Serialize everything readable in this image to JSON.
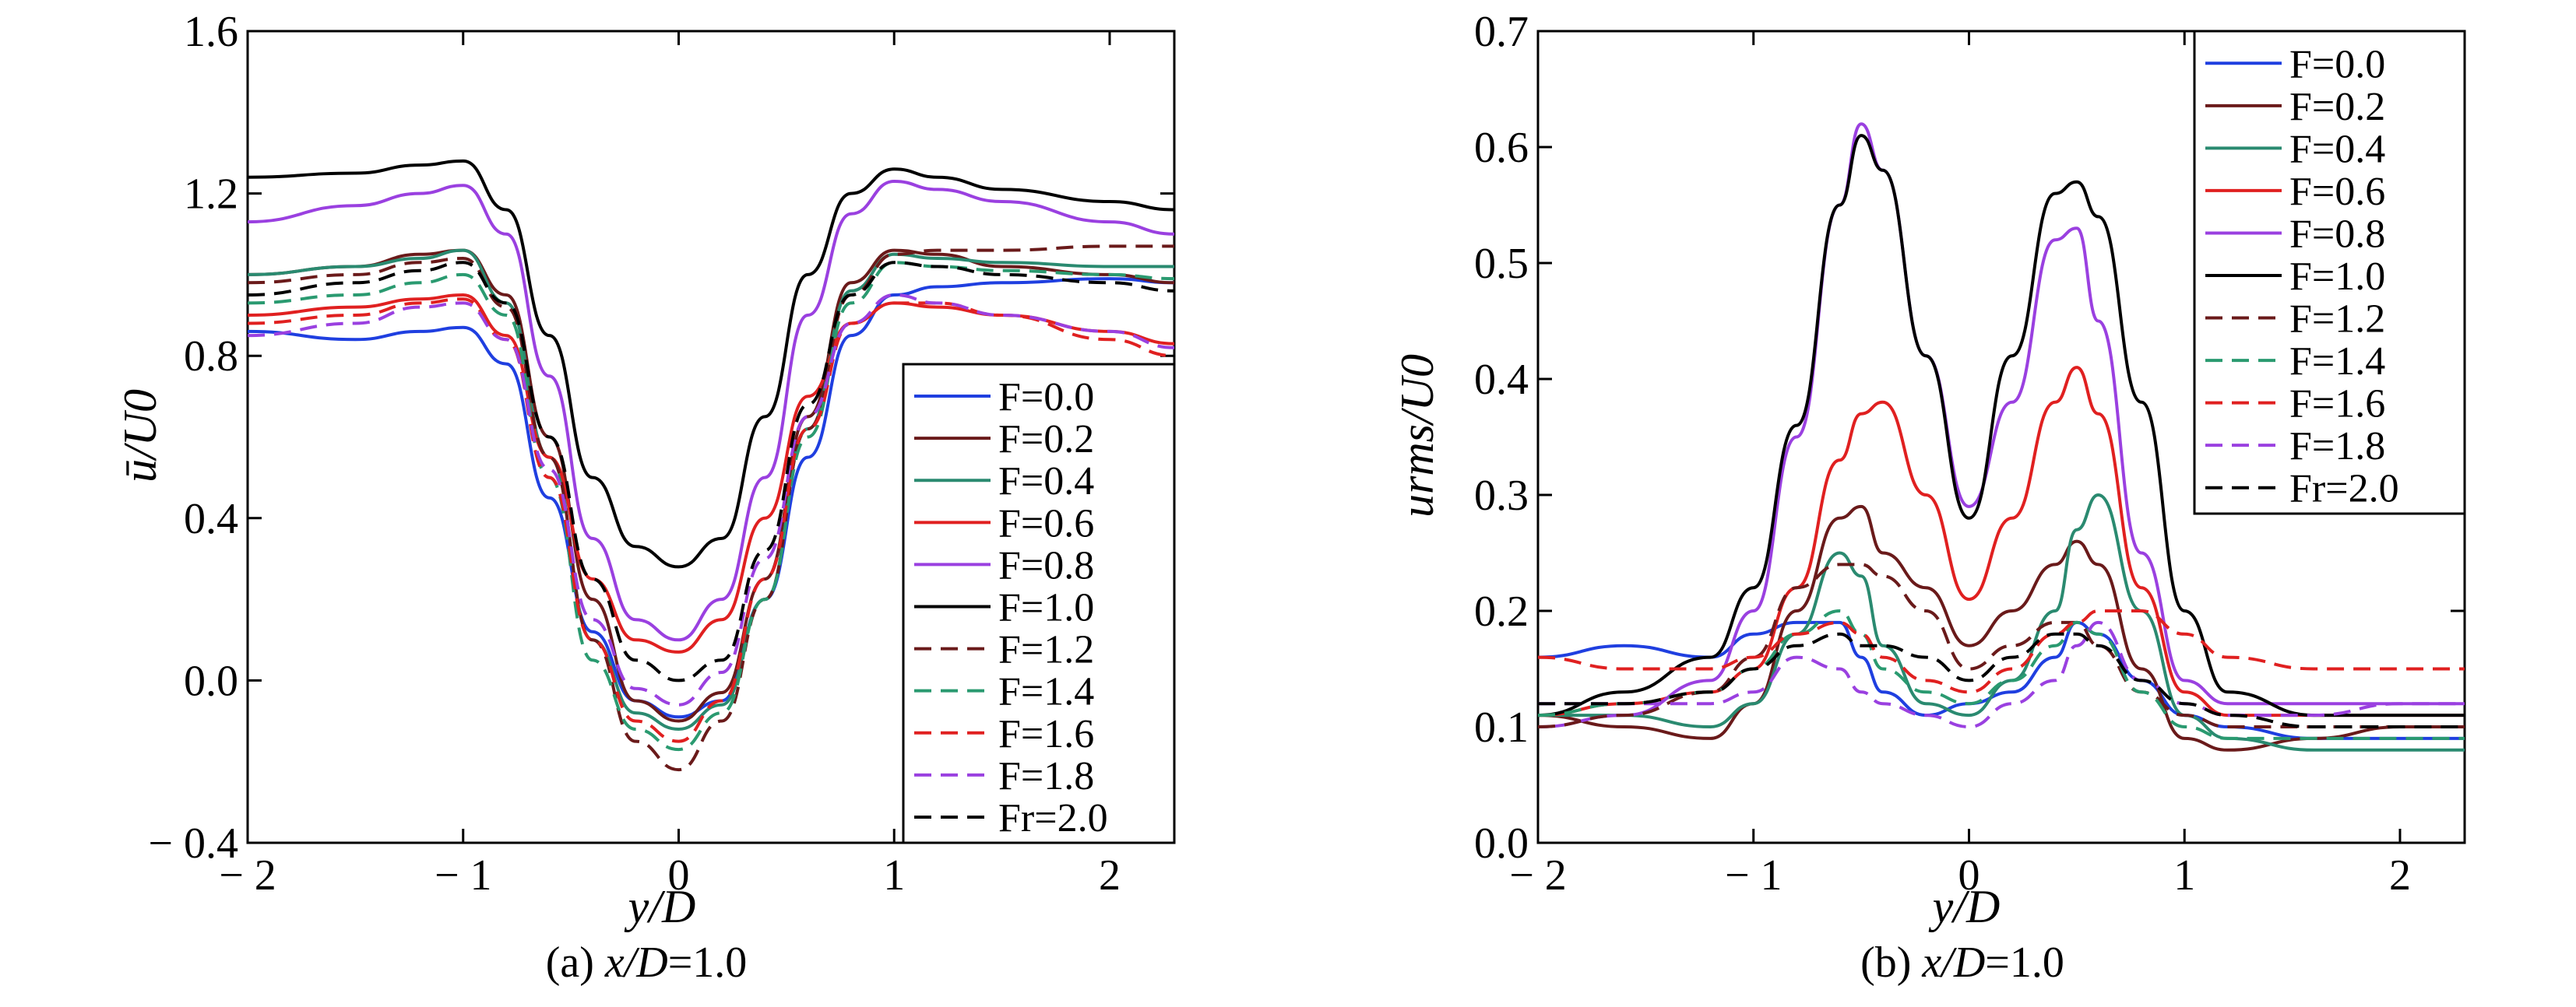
{
  "figure": {
    "caption_a_prefix": "(a) ",
    "caption_a_var": "x/D",
    "caption_a_value": "=1.0",
    "caption_b_prefix": "(b) ",
    "caption_b_var": "x/D",
    "caption_b_value": "=1.0"
  },
  "chart_data": [
    {
      "type": "line",
      "title": "",
      "xlabel": "y/D",
      "ylabel": "ū/U0",
      "xlim": [
        -2,
        2.3
      ],
      "ylim": [
        -0.4,
        1.6
      ],
      "xticks": [
        -2,
        -1,
        0,
        1,
        2
      ],
      "yticks": [
        -0.4,
        0.0,
        0.4,
        0.8,
        1.2,
        1.6
      ],
      "xtick_labels": [
        "− 2",
        "− 1",
        "0",
        "1",
        "2"
      ],
      "ytick_labels": [
        "− 0.4",
        "0.0",
        "0.4",
        "0.8",
        "1.2",
        "1.6"
      ],
      "legend_position": "bottom-right",
      "x": [
        -2.0,
        -1.5,
        -1.2,
        -1.0,
        -0.8,
        -0.6,
        -0.4,
        -0.2,
        0.0,
        0.2,
        0.4,
        0.6,
        0.8,
        1.0,
        1.2,
        1.5,
        2.0,
        2.3
      ],
      "series": [
        {
          "name": "F=0.0",
          "color": "#1f3fe0",
          "dash": "solid",
          "values": [
            0.86,
            0.84,
            0.86,
            0.87,
            0.78,
            0.45,
            0.12,
            -0.05,
            -0.09,
            -0.05,
            0.2,
            0.55,
            0.85,
            0.95,
            0.97,
            0.98,
            0.99,
            0.98
          ]
        },
        {
          "name": "F=0.2",
          "color": "#6a1a1a",
          "dash": "solid",
          "values": [
            1.0,
            1.02,
            1.05,
            1.06,
            0.95,
            0.6,
            0.2,
            -0.05,
            -0.1,
            -0.03,
            0.25,
            0.65,
            0.98,
            1.06,
            1.05,
            1.02,
            1.0,
            0.98
          ]
        },
        {
          "name": "F=0.4",
          "color": "#2a8a70",
          "dash": "solid",
          "values": [
            1.0,
            1.02,
            1.04,
            1.06,
            0.93,
            0.55,
            0.1,
            -0.08,
            -0.12,
            -0.06,
            0.2,
            0.62,
            0.96,
            1.05,
            1.04,
            1.03,
            1.02,
            1.02
          ]
        },
        {
          "name": "F=0.6",
          "color": "#e02020",
          "dash": "solid",
          "values": [
            0.9,
            0.92,
            0.94,
            0.95,
            0.85,
            0.55,
            0.25,
            0.1,
            0.07,
            0.15,
            0.4,
            0.7,
            0.88,
            0.93,
            0.92,
            0.9,
            0.86,
            0.83
          ]
        },
        {
          "name": "F=0.8",
          "color": "#9a40e0",
          "dash": "solid",
          "values": [
            1.13,
            1.17,
            1.2,
            1.22,
            1.1,
            0.75,
            0.35,
            0.15,
            0.1,
            0.2,
            0.5,
            0.9,
            1.15,
            1.23,
            1.21,
            1.18,
            1.13,
            1.1
          ]
        },
        {
          "name": "F=1.0",
          "color": "#000000",
          "dash": "solid",
          "values": [
            1.24,
            1.25,
            1.27,
            1.28,
            1.16,
            0.85,
            0.5,
            0.33,
            0.28,
            0.35,
            0.65,
            1.0,
            1.2,
            1.26,
            1.24,
            1.21,
            1.18,
            1.16
          ]
        },
        {
          "name": "F=1.2",
          "color": "#6a1a1a",
          "dash": "dashed",
          "values": [
            0.98,
            1.0,
            1.03,
            1.04,
            0.92,
            0.55,
            0.1,
            -0.15,
            -0.22,
            -0.1,
            0.2,
            0.62,
            0.95,
            1.05,
            1.06,
            1.06,
            1.07,
            1.07
          ]
        },
        {
          "name": "F=1.4",
          "color": "#2a9a70",
          "dash": "dashed",
          "values": [
            0.93,
            0.95,
            0.98,
            1.0,
            0.9,
            0.5,
            0.05,
            -0.12,
            -0.17,
            -0.08,
            0.2,
            0.6,
            0.93,
            1.03,
            1.02,
            1.01,
            1.0,
            0.99
          ]
        },
        {
          "name": "F=1.6",
          "color": "#e02020",
          "dash": "dashed",
          "values": [
            0.88,
            0.9,
            0.93,
            0.94,
            0.84,
            0.5,
            0.1,
            -0.1,
            -0.15,
            -0.05,
            0.25,
            0.62,
            0.88,
            0.93,
            0.93,
            0.9,
            0.84,
            0.8
          ]
        },
        {
          "name": "F=1.8",
          "color": "#9a40e0",
          "dash": "dashed",
          "values": [
            0.85,
            0.88,
            0.92,
            0.93,
            0.84,
            0.52,
            0.15,
            -0.02,
            -0.06,
            0.02,
            0.3,
            0.65,
            0.88,
            0.95,
            0.93,
            0.9,
            0.86,
            0.82
          ]
        },
        {
          "name": "Fr=2.0",
          "color": "#000000",
          "dash": "dashed",
          "values": [
            0.95,
            0.98,
            1.01,
            1.03,
            0.93,
            0.6,
            0.25,
            0.05,
            0.0,
            0.05,
            0.32,
            0.68,
            0.95,
            1.03,
            1.02,
            1.0,
            0.98,
            0.96
          ]
        }
      ]
    },
    {
      "type": "line",
      "title": "",
      "xlabel": "y/D",
      "ylabel": "urms/U0",
      "xlim": [
        -2,
        2.3
      ],
      "ylim": [
        0.0,
        0.7
      ],
      "xticks": [
        -2,
        -1,
        0,
        1,
        2
      ],
      "yticks": [
        0.0,
        0.1,
        0.2,
        0.3,
        0.4,
        0.5,
        0.6,
        0.7
      ],
      "xtick_labels": [
        "− 2",
        "− 1",
        "0",
        "1",
        "2"
      ],
      "ytick_labels": [
        "0.0",
        "0.1",
        "0.2",
        "0.3",
        "0.4",
        "0.5",
        "0.6",
        "0.7"
      ],
      "legend_position": "top-right",
      "x": [
        -2.0,
        -1.6,
        -1.2,
        -1.0,
        -0.8,
        -0.6,
        -0.5,
        -0.4,
        -0.2,
        0.0,
        0.2,
        0.4,
        0.5,
        0.6,
        0.8,
        1.0,
        1.2,
        1.6,
        2.0,
        2.3
      ],
      "series": [
        {
          "name": "F=0.0",
          "color": "#1f3fe0",
          "dash": "solid",
          "values": [
            0.16,
            0.17,
            0.16,
            0.18,
            0.19,
            0.19,
            0.16,
            0.13,
            0.11,
            0.12,
            0.13,
            0.16,
            0.19,
            0.18,
            0.14,
            0.11,
            0.1,
            0.09,
            0.09,
            0.09
          ]
        },
        {
          "name": "F=0.2",
          "color": "#6a1a1a",
          "dash": "solid",
          "values": [
            0.11,
            0.1,
            0.09,
            0.12,
            0.2,
            0.28,
            0.29,
            0.25,
            0.22,
            0.17,
            0.2,
            0.24,
            0.26,
            0.24,
            0.15,
            0.09,
            0.08,
            0.09,
            0.1,
            0.1
          ]
        },
        {
          "name": "F=0.4",
          "color": "#2a8a70",
          "dash": "solid",
          "values": [
            0.11,
            0.11,
            0.1,
            0.12,
            0.18,
            0.25,
            0.23,
            0.17,
            0.12,
            0.11,
            0.14,
            0.2,
            0.27,
            0.3,
            0.2,
            0.11,
            0.09,
            0.08,
            0.08,
            0.08
          ]
        },
        {
          "name": "F=0.6",
          "color": "#e02020",
          "dash": "solid",
          "values": [
            0.11,
            0.12,
            0.13,
            0.15,
            0.22,
            0.33,
            0.37,
            0.38,
            0.3,
            0.21,
            0.28,
            0.38,
            0.41,
            0.37,
            0.22,
            0.13,
            0.11,
            0.11,
            0.11,
            0.11
          ]
        },
        {
          "name": "F=0.8",
          "color": "#9a40e0",
          "dash": "solid",
          "values": [
            0.1,
            0.11,
            0.14,
            0.2,
            0.35,
            0.55,
            0.62,
            0.58,
            0.42,
            0.29,
            0.38,
            0.52,
            0.53,
            0.45,
            0.25,
            0.14,
            0.12,
            0.12,
            0.12,
            0.12
          ]
        },
        {
          "name": "F=1.0",
          "color": "#000000",
          "dash": "solid",
          "values": [
            0.11,
            0.13,
            0.16,
            0.22,
            0.36,
            0.55,
            0.61,
            0.58,
            0.42,
            0.28,
            0.42,
            0.56,
            0.57,
            0.54,
            0.38,
            0.2,
            0.13,
            0.11,
            0.11,
            0.11
          ]
        },
        {
          "name": "F=1.2",
          "color": "#6a1a1a",
          "dash": "dashed",
          "values": [
            0.1,
            0.11,
            0.13,
            0.16,
            0.22,
            0.24,
            0.24,
            0.23,
            0.2,
            0.15,
            0.17,
            0.19,
            0.19,
            0.17,
            0.13,
            0.11,
            0.1,
            0.1,
            0.1,
            0.1
          ]
        },
        {
          "name": "F=1.4",
          "color": "#2a9a70",
          "dash": "dashed",
          "values": [
            0.11,
            0.12,
            0.13,
            0.15,
            0.18,
            0.2,
            0.18,
            0.15,
            0.13,
            0.12,
            0.14,
            0.17,
            0.19,
            0.18,
            0.13,
            0.1,
            0.09,
            0.09,
            0.09,
            0.09
          ]
        },
        {
          "name": "F=1.6",
          "color": "#e02020",
          "dash": "dashed",
          "values": [
            0.16,
            0.15,
            0.15,
            0.16,
            0.18,
            0.19,
            0.18,
            0.16,
            0.14,
            0.13,
            0.15,
            0.18,
            0.19,
            0.2,
            0.2,
            0.18,
            0.16,
            0.15,
            0.15,
            0.15
          ]
        },
        {
          "name": "F=1.8",
          "color": "#9a40e0",
          "dash": "dashed",
          "values": [
            0.12,
            0.12,
            0.12,
            0.13,
            0.16,
            0.15,
            0.13,
            0.12,
            0.11,
            0.1,
            0.12,
            0.14,
            0.17,
            0.19,
            0.14,
            0.12,
            0.11,
            0.11,
            0.12,
            0.12
          ]
        },
        {
          "name": "Fr=2.0",
          "color": "#000000",
          "dash": "dashed",
          "values": [
            0.12,
            0.12,
            0.13,
            0.15,
            0.17,
            0.18,
            0.17,
            0.17,
            0.16,
            0.14,
            0.16,
            0.18,
            0.18,
            0.17,
            0.14,
            0.12,
            0.11,
            0.1,
            0.1,
            0.1
          ]
        }
      ]
    }
  ]
}
